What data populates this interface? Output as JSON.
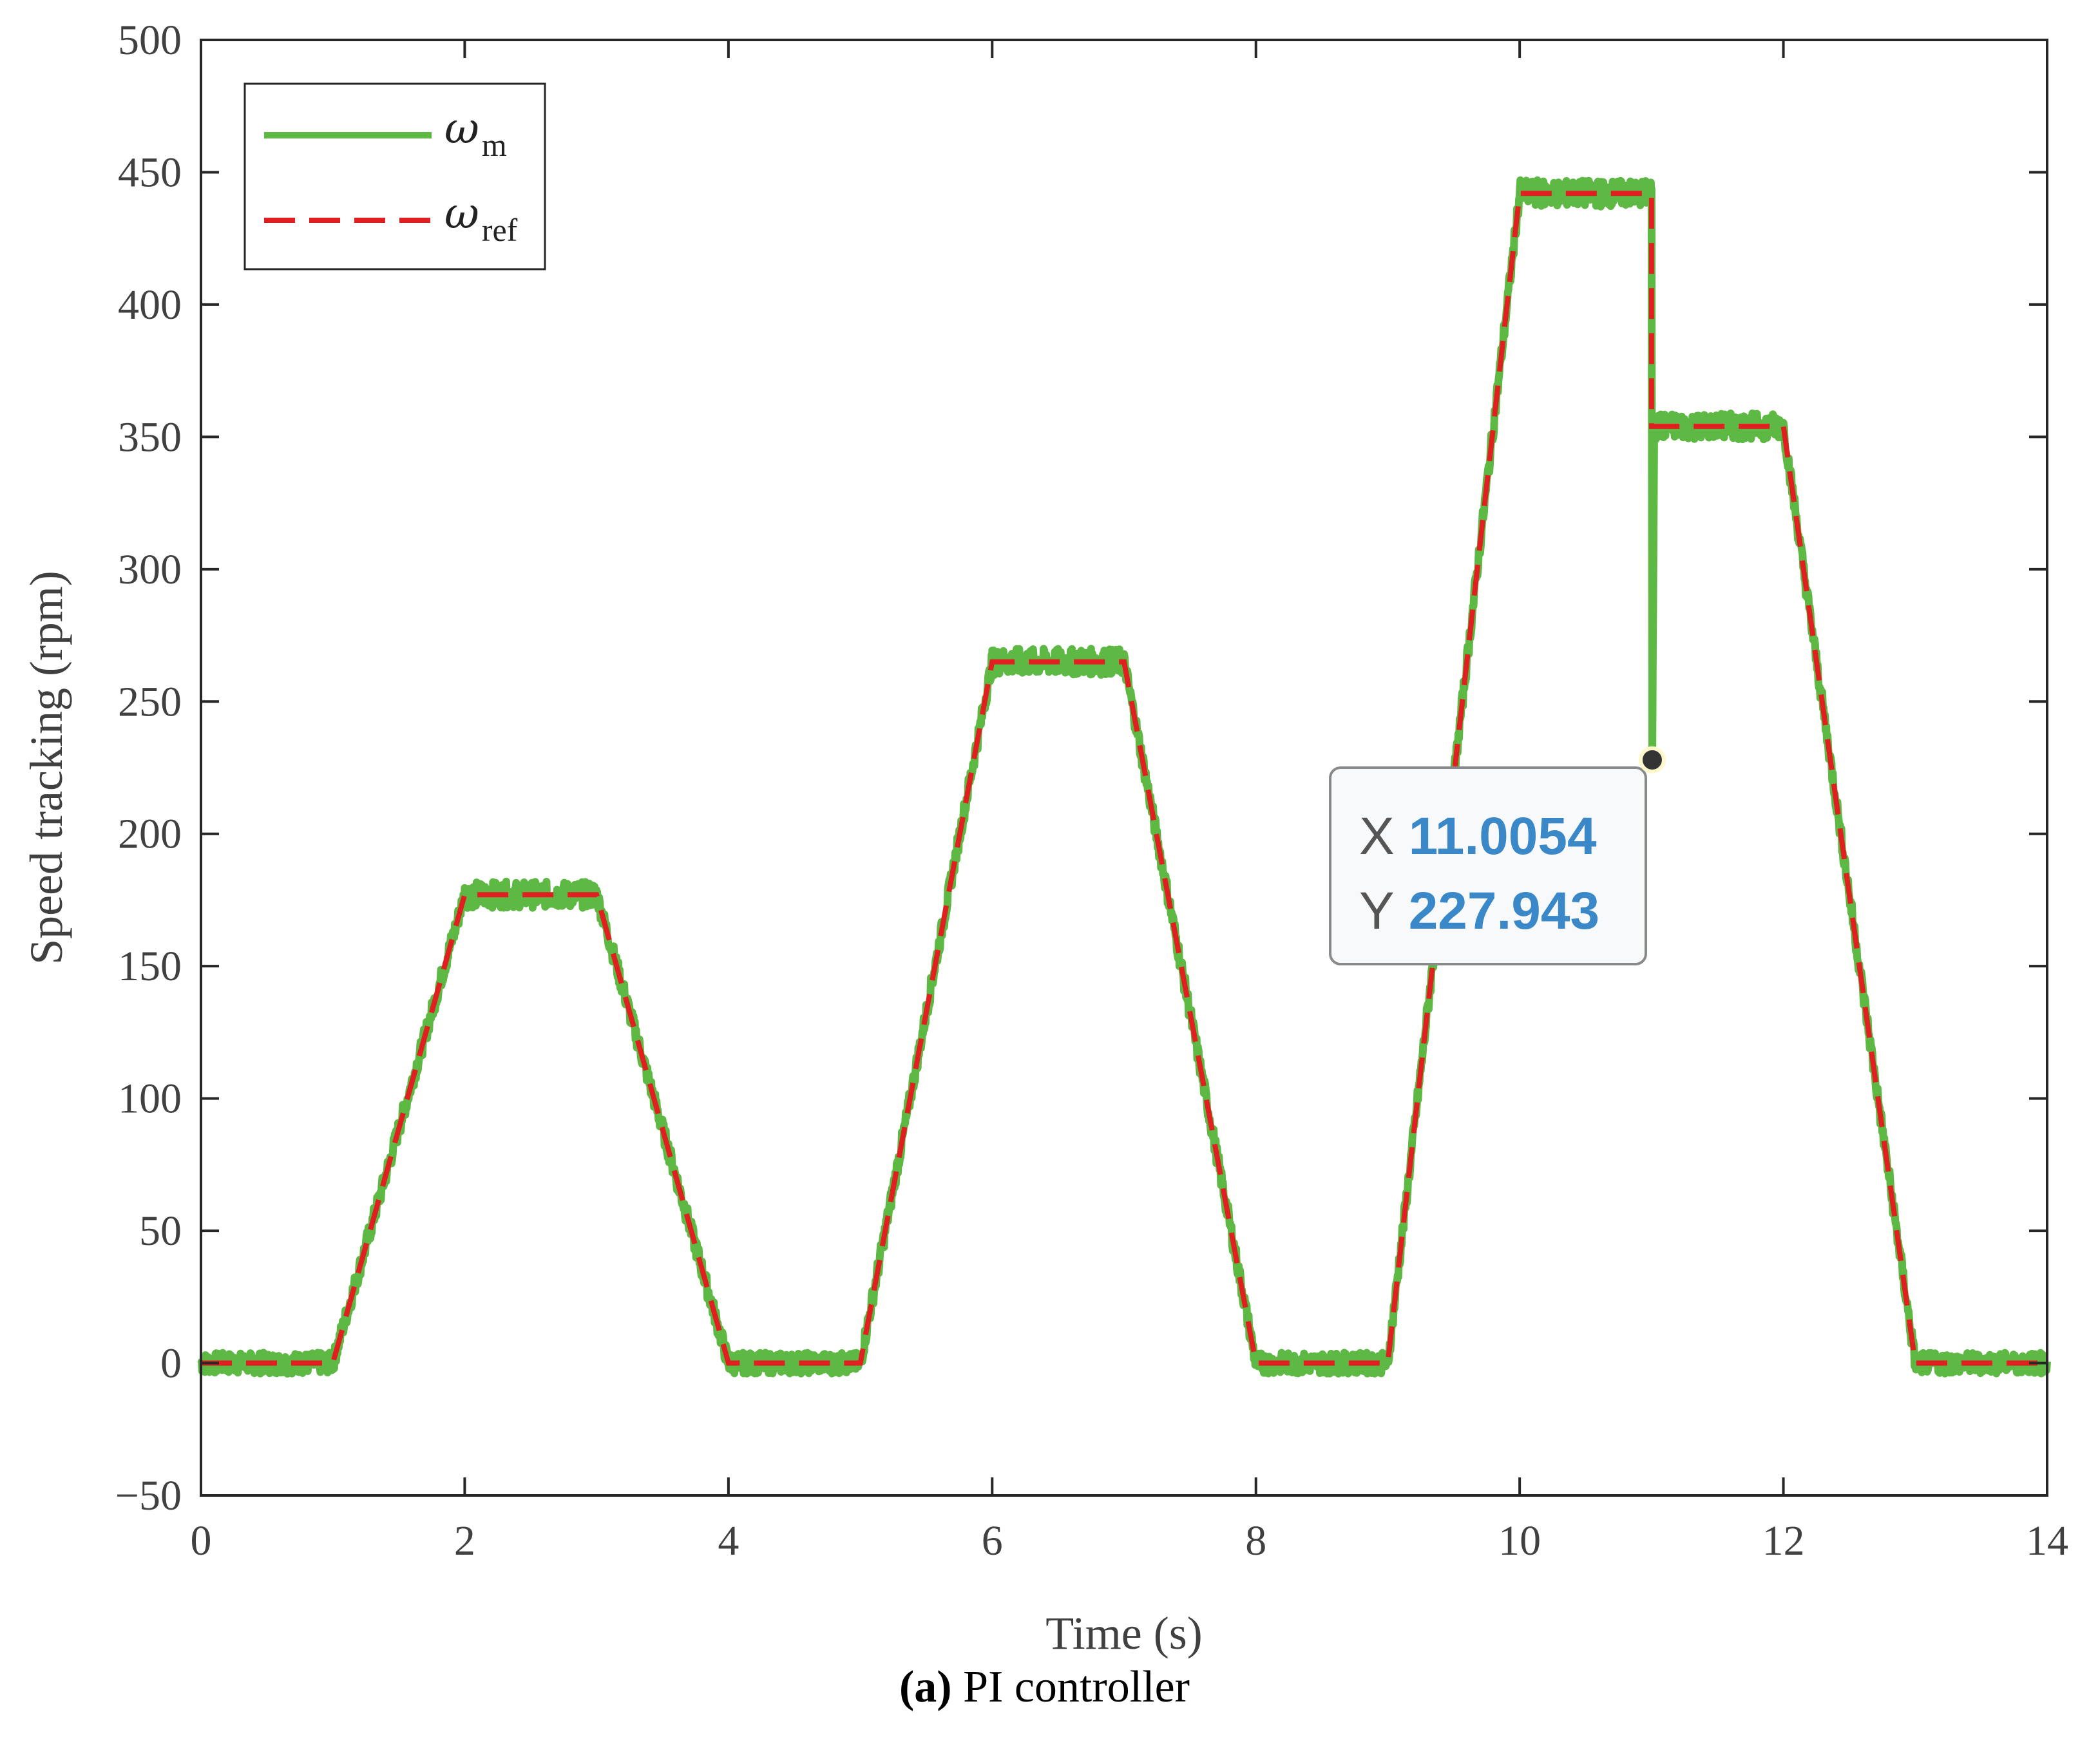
{
  "chart_data": {
    "type": "line",
    "title": "",
    "xlabel": "Time (s)",
    "ylabel": "Speed tracking (rpm)",
    "xlim": [
      0,
      14
    ],
    "ylim": [
      -50,
      500
    ],
    "xticks": [
      0,
      2,
      4,
      6,
      8,
      10,
      12,
      14
    ],
    "yticks": [
      -50,
      0,
      50,
      100,
      150,
      200,
      250,
      300,
      350,
      400,
      450,
      500
    ],
    "ytick_labels": [
      "−50",
      "0",
      "50",
      "100",
      "150",
      "200",
      "250",
      "300",
      "350",
      "400",
      "450",
      "500"
    ],
    "grid": false,
    "legend_position": "top-left",
    "series": [
      {
        "name": "ω",
        "subscript": "m",
        "color": "#5db844",
        "style": "solid",
        "noise_amplitude": 5,
        "x": [
          0,
          1,
          2,
          3,
          4,
          5,
          6,
          7,
          8,
          9,
          10,
          11,
          11.0054,
          11.02,
          12,
          13,
          14
        ],
        "y": [
          0,
          0,
          177,
          177,
          0,
          0,
          265,
          265,
          0,
          0,
          442,
          442,
          227.943,
          354,
          354,
          0,
          0
        ]
      },
      {
        "name": "ω",
        "subscript": "ref",
        "color": "#e02020",
        "style": "dashed",
        "x": [
          0,
          1,
          2,
          3,
          4,
          5,
          6,
          7,
          8,
          9,
          10,
          11,
          11,
          12,
          13,
          14
        ],
        "y": [
          0,
          0,
          177,
          177,
          0,
          0,
          265,
          265,
          0,
          0,
          442,
          442,
          354,
          354,
          0,
          0
        ]
      }
    ],
    "datatip": {
      "x_key": "X",
      "y_key": "Y",
      "x_value": "11.0054",
      "y_value": "227.943",
      "point": [
        11.0054,
        227.943
      ]
    }
  },
  "caption": {
    "label": "(a)",
    "text": " PI controller"
  }
}
